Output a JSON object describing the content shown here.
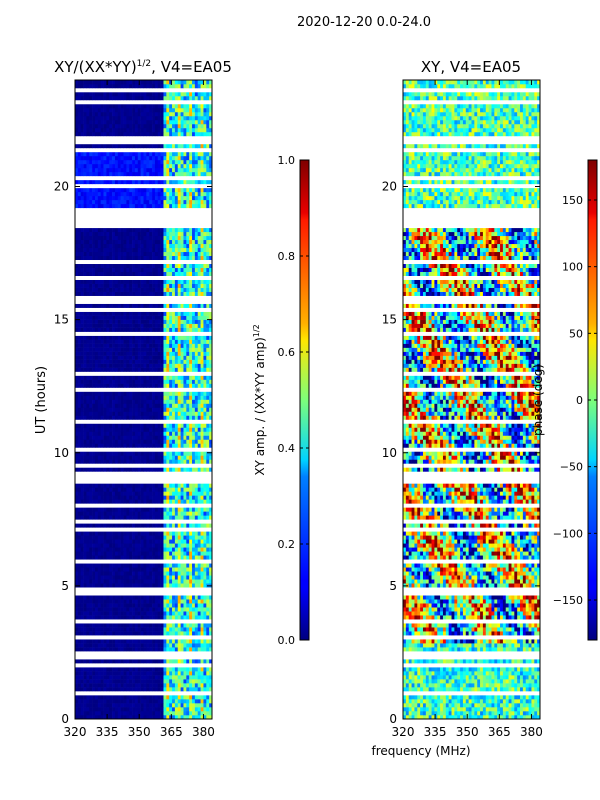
{
  "figure_title": "2020-12-20 0.0-24.0",
  "shared_xlabel": "frequency (MHz)",
  "chart_data": [
    {
      "type": "heatmap",
      "title_main": "XY/(XX*YY)",
      "title_exp": "1/2",
      "title_suffix": ", V4=EA05",
      "xlabel": "",
      "ylabel": "UT (hours)",
      "xlim": [
        320,
        384
      ],
      "ylim": [
        0,
        24
      ],
      "xticks": [
        320,
        335,
        350,
        365,
        380
      ],
      "yticks": [
        0,
        5,
        10,
        15,
        20
      ],
      "colorbar": {
        "label_main": "XY amp. / (XX*YY amp)",
        "label_exp": "1/2",
        "range": [
          0.0,
          1.0
        ],
        "ticks": [
          0.0,
          0.2,
          0.4,
          0.6,
          0.8,
          1.0
        ],
        "tick_labels": [
          "0.0",
          "0.2",
          "0.4",
          "0.6",
          "0.8",
          "1.0"
        ],
        "colormap": "jet"
      },
      "data_description": "low amplitude (~0) below 361 MHz; mottled 0.2-0.6 above 361 MHz; flagged horizontal gaps"
    },
    {
      "type": "heatmap",
      "title_main": "XY, V4=EA05",
      "xlabel": "frequency (MHz)",
      "ylabel": "",
      "xlim": [
        320,
        384
      ],
      "ylim": [
        0,
        24
      ],
      "xticks": [
        320,
        335,
        350,
        365,
        380
      ],
      "yticks": [
        0,
        5,
        10,
        15,
        20
      ],
      "colorbar": {
        "label": "phase (deg)",
        "range": [
          -180,
          180
        ],
        "ticks": [
          -150,
          -100,
          -50,
          0,
          50,
          100,
          150
        ],
        "tick_labels": [
          "−150",
          "−100",
          "−50",
          "0",
          "50",
          "100",
          "150"
        ],
        "colormap": "jet"
      },
      "data_description": "noisy phase spread over full range; smoother near 0 after 19 h; flagged horizontal gaps"
    }
  ],
  "colors": {
    "jet_low": "#00007f",
    "jet_high": "#7f0000",
    "axis": "#000000",
    "flag": "#ffffff"
  }
}
